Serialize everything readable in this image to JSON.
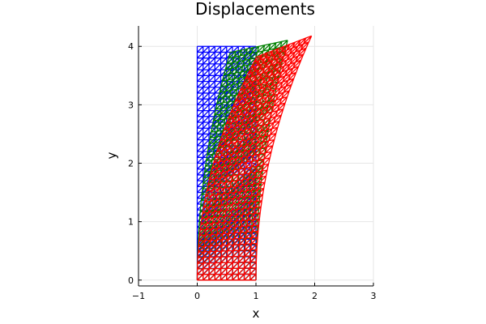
{
  "chart_data": {
    "type": "mesh",
    "title": "Displacements",
    "xlabel": "x",
    "ylabel": "y",
    "xlim": [
      -1,
      3
    ],
    "ylim": [
      -0.1,
      4.35
    ],
    "xticks": [
      -1,
      0,
      1,
      2,
      3
    ],
    "yticks": [
      0,
      1,
      2,
      3,
      4
    ],
    "xtick_labels": [
      "−1",
      "0",
      "1",
      "2",
      "3"
    ],
    "ytick_labels": [
      "0",
      "1",
      "2",
      "3",
      "4"
    ],
    "grid": true,
    "legend": "none",
    "mesh": {
      "width": 1,
      "height": 4,
      "nx": 10,
      "ny": 40
    },
    "series": [
      {
        "color": "#0000ff",
        "tip_dx": 0.0,
        "rotation_deg": 0
      },
      {
        "color": "#008000",
        "tip_dx": 0.55,
        "rotation_deg": -12
      },
      {
        "color": "#ff0000",
        "tip_dx": 0.98,
        "rotation_deg": -21
      }
    ]
  }
}
